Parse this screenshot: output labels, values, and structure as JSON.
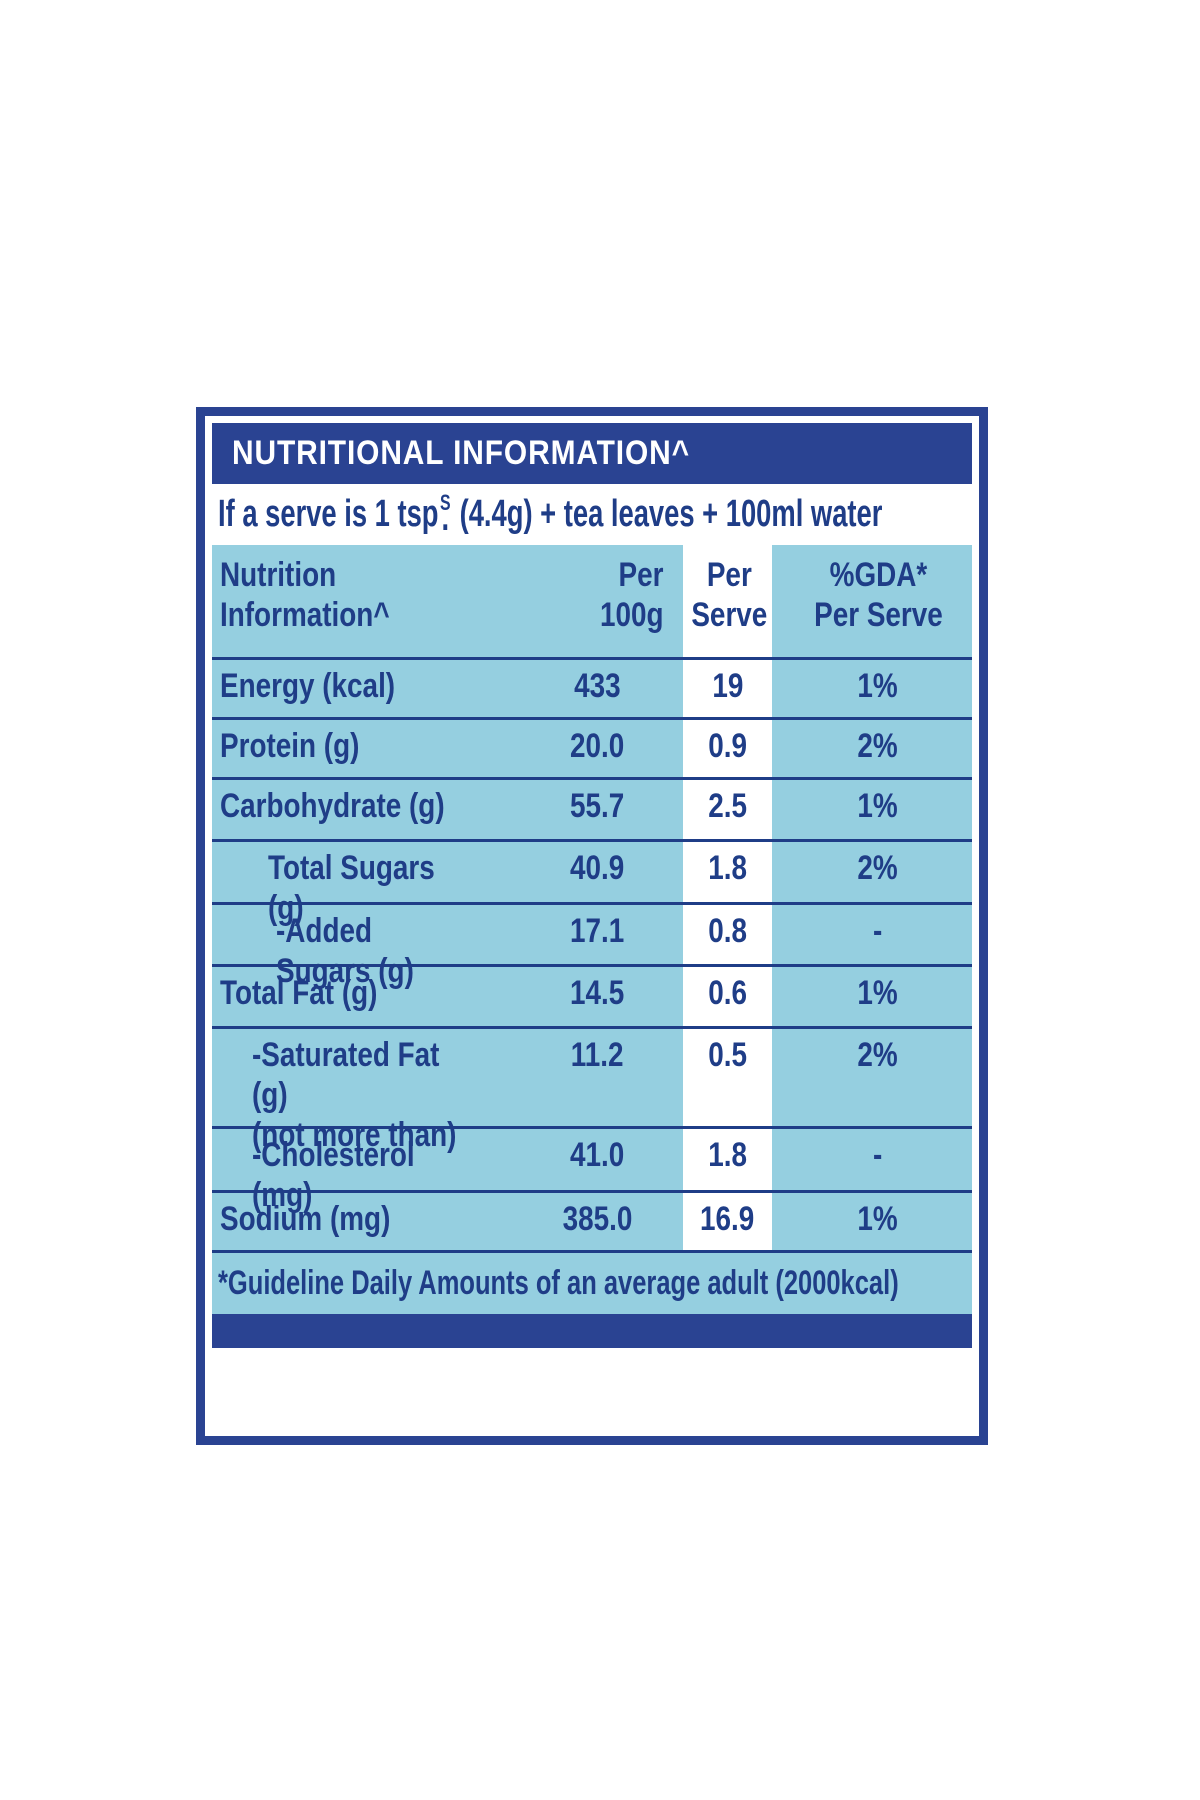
{
  "colors": {
    "navy_band": "#2a4392",
    "text_navy": "#1f3d87",
    "light_blue": "#95cfe0",
    "highlight_column": "#ffffff"
  },
  "label": {
    "title": "NUTRITIONAL INFORMATION^",
    "serving_line": {
      "prefix": "If a serve is 1 tsp",
      "footnote_mark": "S",
      "dot": ".",
      "suffix": " (4.4g) + tea leaves + 100ml water"
    },
    "table": {
      "headers": {
        "nutrition": "Nutrition\nInformation^",
        "per_100g": "Per\n100g",
        "per_serve": "Per\nServe",
        "gda": "%GDA*\nPer Serve"
      },
      "rows": [
        {
          "label": "Energy (kcal)",
          "per_100g": "433",
          "per_serve": "19",
          "gda": "1%"
        },
        {
          "label": "Protein (g)",
          "per_100g": "20.0",
          "per_serve": "0.9",
          "gda": "2%"
        },
        {
          "label": "Carbohydrate (g)",
          "per_100g": "55.7",
          "per_serve": "2.5",
          "gda": "1%"
        },
        {
          "label": "Total Sugars (g)",
          "per_100g": "40.9",
          "per_serve": "1.8",
          "gda": "2%"
        },
        {
          "label": "-Added Sugars (g)",
          "per_100g": "17.1",
          "per_serve": "0.8",
          "gda": "-"
        },
        {
          "label": "Total Fat (g)",
          "per_100g": "14.5",
          "per_serve": "0.6",
          "gda": "1%"
        },
        {
          "label": "-Saturated Fat (g)\n(not more than)",
          "per_100g": "11.2",
          "per_serve": "0.5",
          "gda": "2%"
        },
        {
          "label": "-Cholesterol (mg)",
          "per_100g": "41.0",
          "per_serve": "1.8",
          "gda": "-"
        },
        {
          "label": "Sodium (mg)",
          "per_100g": "385.0",
          "per_serve": "16.9",
          "gda": "1%"
        }
      ],
      "footnote": "*Guideline Daily Amounts of an average adult (2000kcal)"
    }
  }
}
